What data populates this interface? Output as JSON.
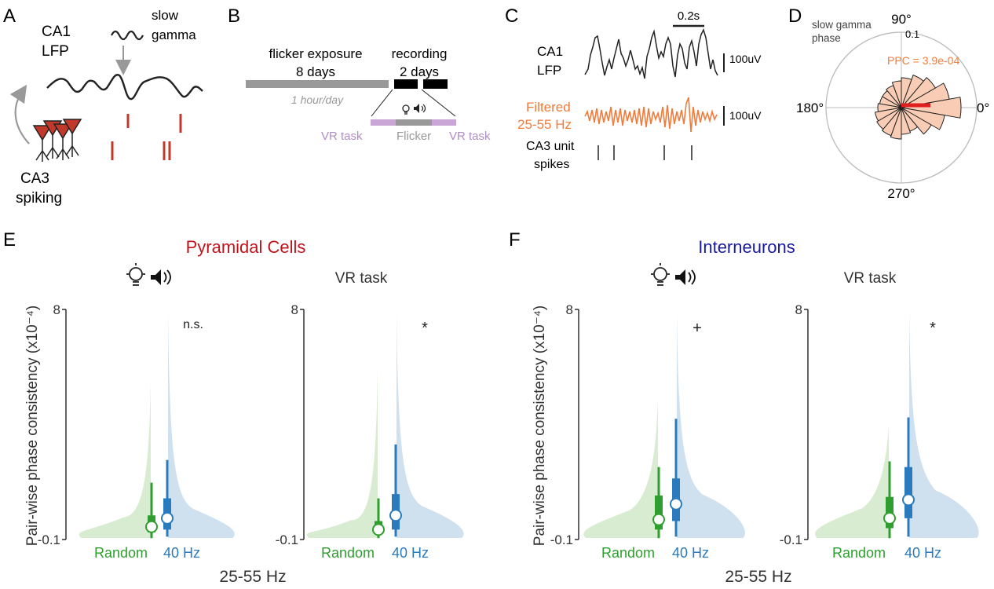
{
  "panel_letters": {
    "a": "A",
    "b": "B",
    "c": "C",
    "d": "D",
    "e": "E",
    "f": "F"
  },
  "panel_a": {
    "lfp_label_1": "CA1",
    "lfp_label_2": "LFP",
    "gamma_label_1": "slow",
    "gamma_label_2": "gamma",
    "spiking_label_1": "CA3",
    "spiking_label_2": "spiking",
    "colors": {
      "spike": "#c0392b",
      "neuron": "#c0392b",
      "arrow": "#999999",
      "trace": "#222222"
    }
  },
  "panel_b": {
    "exposure_1": "flicker exposure",
    "exposure_2": "8 days",
    "recording_1": "recording",
    "recording_2": "2 days",
    "per_day": "1 hour/day",
    "vr_left": "VR task",
    "flicker": "Flicker",
    "vr_right": "VR task",
    "colors": {
      "exposure_bar": "#999999",
      "recording_bar": "#000000",
      "vr": "#c9a6d6",
      "flicker": "#999999"
    }
  },
  "panel_c": {
    "scale_time": "0.2s",
    "lfp_1": "CA1",
    "lfp_2": "LFP",
    "scale_uv_1": "100uV",
    "filtered_1": "Filtered",
    "filtered_2": "25-55 Hz",
    "scale_uv_2": "100uV",
    "spikes_1": "CA3 unit",
    "spikes_2": "spikes",
    "colors": {
      "filtered": "#f07c3c",
      "raw": "#222222"
    }
  },
  "panel_d": {
    "title_1": "slow gamma",
    "title_2": "phase",
    "angle_90": "90°",
    "radius_tick": "0.1",
    "angle_180": "180°",
    "angle_0": "0°",
    "angle_270": "270°",
    "ppc_label": "PPC = 3.9e-04",
    "colors": {
      "bar_fill": "#f9cdb5",
      "mean_vector": "#e02020",
      "ppc_text": "#f07c3c"
    }
  },
  "panel_e": {
    "title": "Pyramidal Cells",
    "title_color": "#c0141c"
  },
  "panel_f": {
    "title": "Interneurons",
    "title_color": "#1a1aa0"
  },
  "shared": {
    "ylabel": "Pair-wise phase consistency (x10⁻⁴)",
    "xlabel": "25-55 Hz",
    "subplot_vr": "VR task",
    "cat_random": "Random",
    "cat_40hz": "40 Hz",
    "colors": {
      "random": "#2e9e2e",
      "random_fill": "#d7ecd0",
      "hz40": "#2a7bbd",
      "hz40_fill": "#cfe0ef"
    }
  },
  "chart_data": [
    {
      "type": "violin",
      "panel": "E",
      "condition": "Flicker",
      "title": "Pyramidal Cells",
      "xlabel": "25-55 Hz",
      "ylabel": "Pair-wise phase consistency (x10⁻⁴)",
      "ylim": [
        -0.1,
        8
      ],
      "yticks": [
        "8",
        "-0.1"
      ],
      "categories": [
        "Random",
        "40 Hz"
      ],
      "series": [
        {
          "name": "Random",
          "median": 0.35,
          "q1": 0.15,
          "q3": 0.75,
          "whisker_low": -0.05,
          "whisker_high": 1.9,
          "max": 5.5
        },
        {
          "name": "40 Hz",
          "median": 0.65,
          "q1": 0.25,
          "q3": 1.35,
          "whisker_low": 0.0,
          "whisker_high": 2.7,
          "max": 8.0
        }
      ],
      "significance": "n.s."
    },
    {
      "type": "violin",
      "panel": "E",
      "condition": "VR task",
      "ylim": [
        -0.1,
        8
      ],
      "yticks": [
        "8",
        "-0.1"
      ],
      "categories": [
        "Random",
        "40 Hz"
      ],
      "series": [
        {
          "name": "Random",
          "median": 0.25,
          "q1": 0.1,
          "q3": 0.55,
          "whisker_low": -0.05,
          "whisker_high": 1.35,
          "max": 6.0
        },
        {
          "name": "40 Hz",
          "median": 0.75,
          "q1": 0.25,
          "q3": 1.5,
          "whisker_low": 0.0,
          "whisker_high": 3.25,
          "max": 8.0
        }
      ],
      "significance": "*"
    },
    {
      "type": "violin",
      "panel": "F",
      "condition": "Flicker",
      "title": "Interneurons",
      "xlabel": "25-55 Hz",
      "ylabel": "Pair-wise phase consistency (x10⁻⁴)",
      "ylim": [
        -0.1,
        8
      ],
      "yticks": [
        "8",
        "-0.1"
      ],
      "categories": [
        "Random",
        "40 Hz"
      ],
      "series": [
        {
          "name": "Random",
          "median": 0.6,
          "q1": 0.25,
          "q3": 1.45,
          "whisker_low": -0.05,
          "whisker_high": 2.45,
          "max": 4.9
        },
        {
          "name": "40 Hz",
          "median": 1.15,
          "q1": 0.55,
          "q3": 2.05,
          "whisker_low": 0.0,
          "whisker_high": 4.15,
          "max": 8.0
        }
      ],
      "significance": "+"
    },
    {
      "type": "violin",
      "panel": "F",
      "condition": "VR task",
      "ylim": [
        -0.1,
        8
      ],
      "yticks": [
        "8",
        "-0.1"
      ],
      "categories": [
        "Random",
        "40 Hz"
      ],
      "series": [
        {
          "name": "Random",
          "median": 0.65,
          "q1": 0.3,
          "q3": 1.4,
          "whisker_low": -0.05,
          "whisker_high": 2.65,
          "max": 3.9
        },
        {
          "name": "40 Hz",
          "median": 1.3,
          "q1": 0.65,
          "q3": 2.45,
          "whisker_low": 0.0,
          "whisker_high": 4.2,
          "max": 8.0
        }
      ],
      "significance": "*"
    }
  ]
}
